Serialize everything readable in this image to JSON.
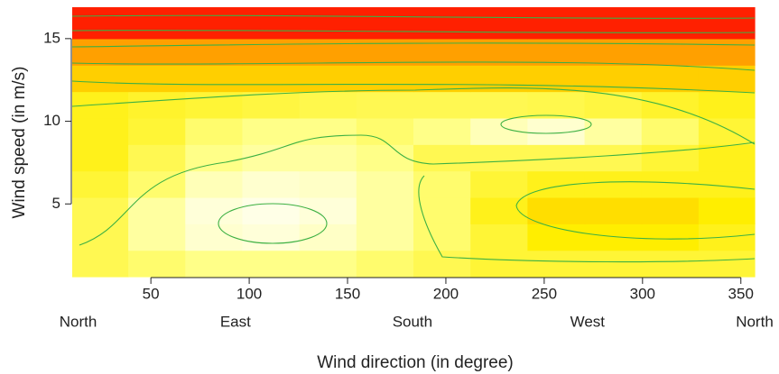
{
  "chart_data": {
    "type": "heatmap",
    "x_label": "Wind direction (in degree)",
    "y_label": "Wind speed (in m/s)",
    "xlim": [
      10,
      357
    ],
    "ylim": [
      0.6,
      16.9
    ],
    "xticks": [
      50,
      100,
      150,
      200,
      250,
      300,
      350
    ],
    "yticks": [
      5,
      10,
      15
    ],
    "direction_labels": [
      {
        "value": 13,
        "label": "North"
      },
      {
        "value": 93,
        "label": "East"
      },
      {
        "value": 183,
        "label": "South"
      },
      {
        "value": 272,
        "label": "West"
      },
      {
        "value": 357,
        "label": "North"
      }
    ],
    "colorscale": [
      "#ffffff",
      "#ffff88",
      "#ffee00",
      "#ffa000",
      "#ff0000"
    ],
    "contour_color": "#3cb043",
    "x": [
      24,
      53,
      82,
      111,
      140,
      169,
      198,
      227,
      256,
      285,
      314,
      343
    ],
    "y": [
      1.4,
      3,
      4.6,
      6.2,
      7.8,
      9.4,
      11,
      12.6,
      14.2,
      15.8
    ],
    "z": [
      [
        0.35,
        0.3,
        0.25,
        0.25,
        0.25,
        0.3,
        0.35,
        0.4,
        0.4,
        0.4,
        0.4,
        0.4
      ],
      [
        0.35,
        0.2,
        0.1,
        0.08,
        0.12,
        0.2,
        0.3,
        0.4,
        0.5,
        0.5,
        0.5,
        0.45
      ],
      [
        0.35,
        0.2,
        0.08,
        0.05,
        0.08,
        0.2,
        0.3,
        0.45,
        0.55,
        0.55,
        0.55,
        0.5
      ],
      [
        0.4,
        0.3,
        0.15,
        0.1,
        0.12,
        0.2,
        0.3,
        0.4,
        0.45,
        0.45,
        0.45,
        0.45
      ],
      [
        0.45,
        0.35,
        0.25,
        0.2,
        0.2,
        0.25,
        0.35,
        0.35,
        0.35,
        0.35,
        0.4,
        0.45
      ],
      [
        0.45,
        0.4,
        0.3,
        0.25,
        0.25,
        0.3,
        0.25,
        0.15,
        0.1,
        0.2,
        0.3,
        0.4
      ],
      [
        0.45,
        0.42,
        0.4,
        0.38,
        0.36,
        0.35,
        0.35,
        0.35,
        0.36,
        0.38,
        0.42,
        0.45
      ],
      [
        0.6,
        0.6,
        0.6,
        0.6,
        0.6,
        0.6,
        0.6,
        0.6,
        0.6,
        0.6,
        0.6,
        0.6
      ],
      [
        0.75,
        0.75,
        0.75,
        0.75,
        0.75,
        0.75,
        0.75,
        0.75,
        0.75,
        0.75,
        0.75,
        0.75
      ],
      [
        0.95,
        0.95,
        0.95,
        0.95,
        0.95,
        0.95,
        0.95,
        0.95,
        0.95,
        0.95,
        0.95,
        0.95
      ]
    ]
  }
}
